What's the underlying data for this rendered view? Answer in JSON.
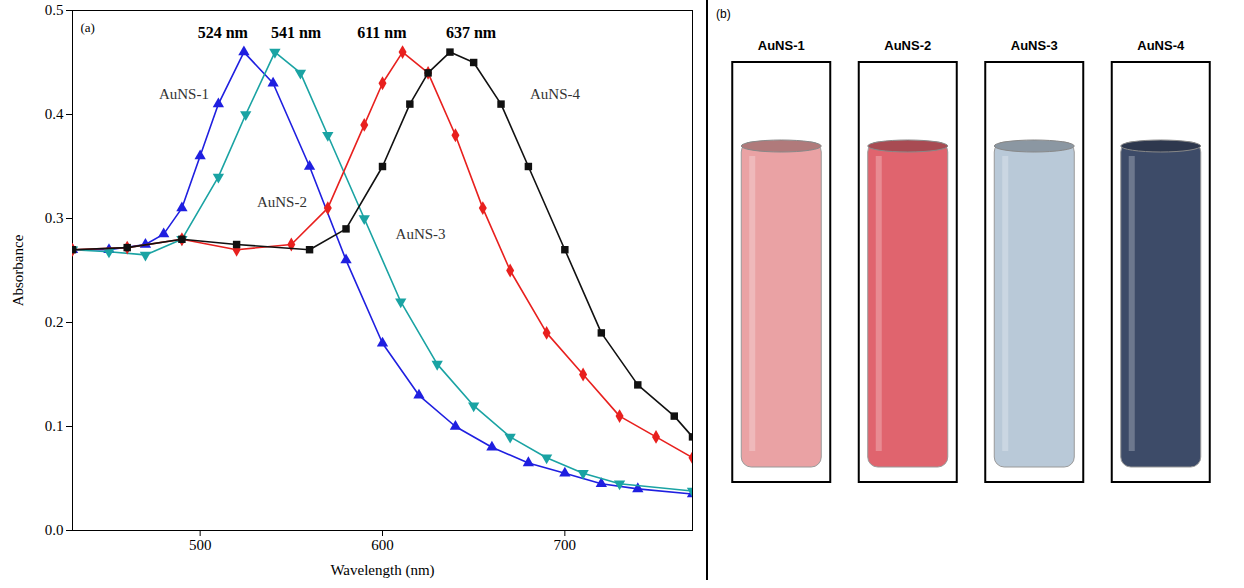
{
  "chart_data": {
    "type": "line",
    "x_label": "Wavelength (nm)",
    "y_label": "Absorbance",
    "annotations": [
      {
        "text": "(a)"
      }
    ],
    "xlim": [
      430,
      770
    ],
    "xticks": [
      500,
      600,
      700
    ],
    "ylim": [
      0,
      0.5
    ],
    "yticks": [
      {
        "value": 0,
        "label": "0.0"
      },
      0.1,
      0.2,
      0.3,
      0.4,
      0.5
    ],
    "grid": false,
    "series": [
      {
        "name": "AuNS-1",
        "color": "#1f1fe0",
        "marker": "triangle",
        "peak_x": 524,
        "peak_label": "524 nm",
        "x": [
          430,
          450,
          470,
          480,
          490,
          500,
          510,
          524,
          540,
          560,
          580,
          600,
          620,
          640,
          660,
          680,
          700,
          720,
          740,
          770
        ],
        "values": [
          0.27,
          0.27,
          0.275,
          0.285,
          0.31,
          0.36,
          0.41,
          0.46,
          0.43,
          0.35,
          0.26,
          0.18,
          0.13,
          0.1,
          0.08,
          0.065,
          0.055,
          0.045,
          0.04,
          0.035
        ]
      },
      {
        "name": "AuNS-2",
        "color": "#1aa3a3",
        "marker": "triangle-down",
        "peak_x": 541,
        "peak_label": "541 nm",
        "x": [
          430,
          450,
          470,
          490,
          510,
          525,
          541,
          555,
          570,
          590,
          610,
          630,
          650,
          670,
          690,
          710,
          730,
          770
        ],
        "values": [
          0.27,
          0.268,
          0.265,
          0.28,
          0.34,
          0.4,
          0.46,
          0.44,
          0.38,
          0.3,
          0.22,
          0.16,
          0.12,
          0.09,
          0.07,
          0.055,
          0.045,
          0.038
        ]
      },
      {
        "name": "AuNS-3",
        "color": "#e8201e",
        "marker": "diamond",
        "peak_x": 611,
        "peak_label": "611 nm",
        "x": [
          430,
          460,
          490,
          520,
          550,
          570,
          590,
          600,
          611,
          625,
          640,
          655,
          670,
          690,
          710,
          730,
          750,
          770
        ],
        "values": [
          0.27,
          0.272,
          0.28,
          0.27,
          0.275,
          0.31,
          0.39,
          0.43,
          0.46,
          0.44,
          0.38,
          0.31,
          0.25,
          0.19,
          0.15,
          0.11,
          0.09,
          0.07
        ]
      },
      {
        "name": "AuNS-4",
        "color": "#111111",
        "marker": "square",
        "peak_x": 637,
        "peak_label": "637 nm",
        "x": [
          430,
          460,
          490,
          520,
          560,
          580,
          600,
          615,
          625,
          637,
          650,
          665,
          680,
          700,
          720,
          740,
          760,
          770
        ],
        "values": [
          0.27,
          0.272,
          0.28,
          0.275,
          0.27,
          0.29,
          0.35,
          0.41,
          0.44,
          0.46,
          0.45,
          0.41,
          0.35,
          0.27,
          0.19,
          0.14,
          0.11,
          0.09
        ]
      }
    ]
  },
  "photo": {
    "label": "(b)",
    "vials": [
      {
        "name": "AuNS-1",
        "color": "#eaa2a4"
      },
      {
        "name": "AuNS-2",
        "color": "#e0646e"
      },
      {
        "name": "AuNS-3",
        "color": "#b9c9d8"
      },
      {
        "name": "AuNS-4",
        "color": "#3d4b68"
      }
    ]
  }
}
